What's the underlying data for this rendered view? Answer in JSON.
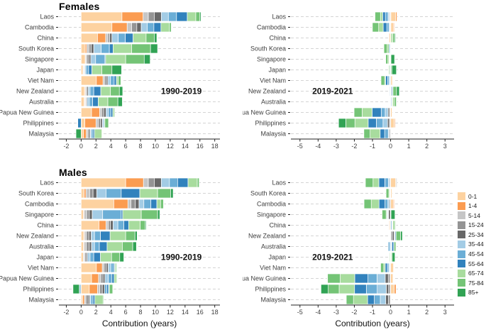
{
  "figure": {
    "panel_titles": [
      "Females",
      "Males"
    ],
    "xlabel": "Contribution (years)",
    "legend": [
      {
        "label": "0-1",
        "color": "#FDD2A0"
      },
      {
        "label": "1-4",
        "color": "#FB9C51"
      },
      {
        "label": "5-14",
        "color": "#C6C6C6"
      },
      {
        "label": "15-24",
        "color": "#949494"
      },
      {
        "label": "25-34",
        "color": "#686868"
      },
      {
        "label": "35-44",
        "color": "#A3CCE5"
      },
      {
        "label": "45-54",
        "color": "#6BAED6"
      },
      {
        "label": "55-64",
        "color": "#3182BD"
      },
      {
        "label": "65-74",
        "color": "#A8DC9E"
      },
      {
        "label": "75-84",
        "color": "#74C476"
      },
      {
        "label": "85+",
        "color": "#31A354"
      }
    ],
    "grid_color": "#D4D4D4",
    "axis_color": "#222222",
    "text_color": "#404040"
  },
  "chart_data": [
    {
      "type": "bar",
      "stacked": true,
      "orientation": "horizontal",
      "sex": "Females",
      "period": "1990-2019",
      "xlabel": null,
      "xlim": [
        -3.0,
        18.7
      ],
      "xticks": [
        -2,
        0,
        2,
        4,
        6,
        8,
        10,
        12,
        14,
        16,
        18
      ],
      "period_label": {
        "text": "1990-2019",
        "x": 13.5,
        "row": 7
      },
      "age_groups": [
        "0-1",
        "1-4",
        "5-14",
        "15-24",
        "25-34",
        "35-44",
        "45-54",
        "55-64",
        "65-74",
        "75-84",
        "85+"
      ],
      "categories": [
        "Laos",
        "Cambodia",
        "China",
        "South Korea",
        "Singapore",
        "Japan",
        "Viet Nam",
        "New Zealand",
        "Australia",
        "Papua New Guinea",
        "Philippines",
        "Malaysia"
      ],
      "series": [
        {
          "name": "Laos",
          "values": [
            5.5,
            2.85,
            0.7,
            0.8,
            0.95,
            0.95,
            1.1,
            1.45,
            1.15,
            0.55,
            0.15
          ]
        },
        {
          "name": "Cambodia",
          "values": [
            4.15,
            2.05,
            0.6,
            0.7,
            0.6,
            0.8,
            0.9,
            0.95,
            1.15,
            0.25,
            0.05
          ]
        },
        {
          "name": "China",
          "values": [
            2.2,
            1.1,
            0.3,
            0.25,
            0.3,
            0.85,
            0.95,
            1.05,
            1.75,
            1.1,
            0.35
          ]
        },
        {
          "name": "South Korea",
          "values": [
            0.55,
            0.2,
            0.3,
            0.3,
            0.35,
            1.0,
            1.1,
            0.5,
            2.5,
            2.55,
            0.95
          ]
        },
        {
          "name": "Singapore",
          "values": [
            0.55,
            0.05,
            0.2,
            0.25,
            0.25,
            0.65,
            1.25,
            0.1,
            2.7,
            2.5,
            0.8
          ]
        },
        {
          "name": "Japan",
          "values": [
            0.25,
            0.05,
            0.05,
            0.1,
            0.05,
            0.15,
            0.35,
            0.45,
            1.35,
            1.35,
            1.3
          ]
        },
        {
          "name": "Viet Nam",
          "values": [
            2.05,
            0.9,
            0.2,
            0.25,
            0.2,
            0.35,
            0.5,
            0.3,
            0.25,
            0.35,
            0.05
          ]
        },
        {
          "name": "New Zealand",
          "values": [
            0.45,
            0.1,
            0.1,
            0.15,
            0.15,
            0.25,
            0.5,
            0.95,
            1.3,
            1.2,
            0.45
          ]
        },
        {
          "name": "Australia",
          "values": [
            0.4,
            0.1,
            0.1,
            0.1,
            0.1,
            0.3,
            0.45,
            0.75,
            1.3,
            1.35,
            0.6
          ]
        },
        {
          "name": "Papua New Guinea",
          "values": [
            1.4,
            1.1,
            0.25,
            0.3,
            0.3,
            0.3,
            0.35,
            0.25,
            0.2,
            0.1,
            0.0
          ]
        },
        {
          "name": "Philippines",
          "values": [
            0.5,
            1.5,
            0.3,
            0.3,
            0.25,
            0.1,
            0.15,
            -0.45,
            0.1,
            0.5,
            0.05
          ]
        },
        {
          "name": "Malaysia",
          "values": [
            0.3,
            0.4,
            0.2,
            0.2,
            0.15,
            0.1,
            0.25,
            0.2,
            1.0,
            0.05,
            -0.7
          ]
        }
      ]
    },
    {
      "type": "bar",
      "stacked": true,
      "orientation": "horizontal",
      "sex": "Females",
      "period": "2019-2021",
      "xlabel": null,
      "xlim": [
        -5.5,
        3.5
      ],
      "xticks": [
        -5,
        -4,
        -3,
        -2,
        -1,
        0,
        1,
        2,
        3
      ],
      "period_label": {
        "text": "2019-2021",
        "x": -3.2,
        "row": 7
      },
      "age_groups": [
        "0-1",
        "1-4",
        "5-14",
        "15-24",
        "25-34",
        "35-44",
        "45-54",
        "55-64",
        "65-74",
        "75-84",
        "85+"
      ],
      "categories": [
        "Laos",
        "Cambodia",
        "China",
        "South Korea",
        "Singapore",
        "Japan",
        "Viet Nam",
        "New Zealand",
        "Australia",
        "Papua New Guinea",
        "Philippines",
        "Malaysia"
      ],
      "series": [
        {
          "name": "Laos",
          "values": [
            0.28,
            0.07,
            -0.01,
            -0.03,
            -0.04,
            -0.06,
            -0.15,
            -0.15,
            -0.12,
            -0.3,
            0.0
          ]
        },
        {
          "name": "Cambodia",
          "values": [
            0.15,
            0.05,
            0.0,
            -0.01,
            -0.03,
            -0.05,
            -0.12,
            -0.2,
            -0.25,
            -0.35,
            -0.02
          ]
        },
        {
          "name": "China",
          "values": [
            -0.07,
            -0.03,
            0.0,
            0.0,
            0.0,
            0.0,
            0.0,
            0.02,
            0.1,
            0.1,
            0.05
          ]
        },
        {
          "name": "South Korea",
          "values": [
            0.03,
            0.0,
            0.0,
            0.0,
            0.0,
            -0.01,
            -0.03,
            -0.05,
            -0.1,
            -0.18,
            0.0
          ]
        },
        {
          "name": "Singapore",
          "values": [
            0.02,
            0.0,
            0.0,
            -0.01,
            -0.03,
            -0.01,
            -0.02,
            -0.02,
            -0.06,
            -0.12,
            0.2
          ]
        },
        {
          "name": "Japan",
          "values": [
            0.02,
            0.0,
            0.0,
            0.0,
            0.0,
            0.0,
            -0.02,
            -0.03,
            -0.05,
            0.05,
            0.25
          ]
        },
        {
          "name": "Viet Nam",
          "values": [
            0.1,
            0.02,
            0.0,
            -0.01,
            -0.02,
            -0.05,
            -0.08,
            -0.12,
            -0.05,
            -0.2,
            0.0
          ]
        },
        {
          "name": "New Zealand",
          "values": [
            0.02,
            0.0,
            0.0,
            0.01,
            0.03,
            -0.02,
            -0.03,
            0.05,
            0.02,
            0.2,
            0.15
          ]
        },
        {
          "name": "Australia",
          "values": [
            0.02,
            0.0,
            0.0,
            0.0,
            -0.02,
            0.05,
            0.02,
            0.02,
            0.1,
            0.1,
            0.03
          ]
        },
        {
          "name": "Papua New Guinea",
          "values": [
            0.08,
            0.02,
            -0.02,
            -0.04,
            -0.08,
            -0.16,
            -0.22,
            -0.5,
            -0.55,
            -0.45,
            -0.02
          ]
        },
        {
          "name": "Philippines",
          "values": [
            0.2,
            0.05,
            -0.02,
            -0.05,
            -0.1,
            -0.25,
            -0.37,
            -0.45,
            -0.73,
            -0.5,
            -0.4
          ]
        },
        {
          "name": "Malaysia",
          "values": [
            0.03,
            0.0,
            -0.01,
            -0.02,
            -0.05,
            -0.05,
            -0.2,
            -0.25,
            -0.55,
            -0.35,
            -0.02
          ]
        }
      ]
    },
    {
      "type": "bar",
      "stacked": true,
      "orientation": "horizontal",
      "sex": "Males",
      "period": "1990-2019",
      "xlabel": "Contribution (years)",
      "xlim": [
        -3.0,
        18.7
      ],
      "xticks": [
        -2,
        0,
        2,
        4,
        6,
        8,
        10,
        12,
        14,
        16,
        18
      ],
      "period_label": {
        "text": "1990-2019",
        "x": 13.5,
        "row": 7
      },
      "age_groups": [
        "0-1",
        "1-4",
        "5-14",
        "15-24",
        "25-34",
        "35-44",
        "45-54",
        "55-64",
        "65-74",
        "75-84",
        "85+"
      ],
      "categories": [
        "Laos",
        "South Korea",
        "Cambodia",
        "Singapore",
        "China",
        "New Zealand",
        "Australia",
        "Japan",
        "Viet Nam",
        "Papua New Guinea",
        "Philippines",
        "Malaysia"
      ],
      "series": [
        {
          "name": "Laos",
          "values": [
            6.0,
            2.4,
            0.65,
            0.8,
            0.95,
            1.1,
            1.1,
            1.4,
            1.25,
            0.25,
            0.0
          ]
        },
        {
          "name": "South Korea",
          "values": [
            0.4,
            0.25,
            0.5,
            0.45,
            0.5,
            1.25,
            2.05,
            2.5,
            2.4,
            1.75,
            0.35
          ]
        },
        {
          "name": "Cambodia",
          "values": [
            4.4,
            1.9,
            0.4,
            0.6,
            0.5,
            0.65,
            0.95,
            0.8,
            0.5,
            0.4,
            0.05
          ]
        },
        {
          "name": "Singapore",
          "values": [
            0.3,
            0.1,
            0.35,
            0.35,
            0.4,
            1.4,
            2.5,
            0.2,
            2.5,
            2.2,
            0.3
          ]
        },
        {
          "name": "China",
          "values": [
            2.4,
            0.95,
            0.3,
            0.3,
            0.35,
            0.65,
            0.8,
            0.65,
            1.55,
            0.65,
            0.15
          ]
        },
        {
          "name": "New Zealand",
          "values": [
            0.35,
            0.1,
            0.25,
            0.35,
            0.3,
            0.45,
            0.8,
            1.3,
            2.1,
            1.25,
            0.3
          ]
        },
        {
          "name": "Australia",
          "values": [
            0.3,
            0.1,
            0.3,
            0.4,
            0.3,
            0.4,
            0.65,
            1.05,
            2.05,
            1.4,
            0.5
          ]
        },
        {
          "name": "Japan",
          "values": [
            0.3,
            0.05,
            0.15,
            0.2,
            0.15,
            0.35,
            0.5,
            0.9,
            1.5,
            1.1,
            0.55
          ]
        },
        {
          "name": "Viet Nam",
          "values": [
            2.05,
            0.8,
            0.25,
            0.3,
            0.25,
            0.35,
            0.35,
            0.15,
            0.1,
            0.15,
            0.0
          ]
        },
        {
          "name": "Papua New Guinea",
          "values": [
            1.4,
            0.95,
            0.3,
            0.3,
            0.25,
            0.45,
            0.5,
            0.3,
            0.3,
            0.1,
            0.0
          ]
        },
        {
          "name": "Philippines",
          "values": [
            1.1,
            1.1,
            0.3,
            0.35,
            0.3,
            -0.25,
            0.3,
            0.25,
            0.1,
            0.45,
            -0.85
          ]
        },
        {
          "name": "Malaysia",
          "values": [
            0.2,
            0.25,
            0.2,
            0.3,
            0.2,
            0.15,
            0.3,
            0.25,
            1.1,
            0.1,
            -0.05
          ]
        }
      ]
    },
    {
      "type": "bar",
      "stacked": true,
      "orientation": "horizontal",
      "sex": "Males",
      "period": "2019-2021",
      "xlabel": "Contribution (years)",
      "xlim": [
        -5.5,
        3.5
      ],
      "xticks": [
        -5,
        -4,
        -3,
        -2,
        -1,
        0,
        1,
        2,
        3
      ],
      "period_label": {
        "text": "2019-2021",
        "x": -3.2,
        "row": 7
      },
      "age_groups": [
        "0-1",
        "1-4",
        "5-14",
        "15-24",
        "25-34",
        "35-44",
        "45-54",
        "55-64",
        "65-74",
        "75-84",
        "85+"
      ],
      "categories": [
        "Laos",
        "South Korea",
        "Cambodia",
        "Singapore",
        "China",
        "New Zealand",
        "Australia",
        "Japan",
        "Viet Nam",
        "Papua New Guinea",
        "Philippines",
        "Malaysia"
      ],
      "series": [
        {
          "name": "Laos",
          "values": [
            0.28,
            0.02,
            0.05,
            -0.02,
            -0.04,
            -0.06,
            -0.2,
            -0.33,
            -0.32,
            -0.42,
            0.0
          ]
        },
        {
          "name": "South Korea",
          "values": [
            0.08,
            0.0,
            0.0,
            0.0,
            0.0,
            -0.01,
            -0.02,
            -0.02,
            -0.05,
            -0.15,
            0.02
          ]
        },
        {
          "name": "Cambodia",
          "values": [
            0.15,
            0.05,
            0.0,
            -0.02,
            -0.05,
            -0.08,
            -0.16,
            -0.33,
            -0.43,
            -0.4,
            -0.02
          ]
        },
        {
          "name": "Singapore",
          "values": [
            0.02,
            0.0,
            0.0,
            -0.02,
            -0.1,
            -0.02,
            -0.03,
            -0.03,
            -0.05,
            -0.22,
            0.22
          ]
        },
        {
          "name": "China",
          "values": [
            -0.05,
            -0.03,
            0.0,
            0.0,
            0.0,
            0.08,
            0.02,
            0.02,
            0.1,
            0.05,
            0.02
          ]
        },
        {
          "name": "New Zealand",
          "values": [
            0.02,
            0.0,
            0.0,
            0.08,
            0.1,
            0.02,
            0.03,
            0.05,
            -0.02,
            0.25,
            0.1
          ]
        },
        {
          "name": "Australia",
          "values": [
            0.02,
            0.0,
            0.0,
            0.0,
            0.02,
            -0.15,
            0.03,
            0.1,
            0.02,
            0.1,
            0.02
          ]
        },
        {
          "name": "Japan",
          "values": [
            0.02,
            0.0,
            0.0,
            0.0,
            0.0,
            0.0,
            -0.02,
            0.02,
            -0.04,
            0.05,
            0.15
          ]
        },
        {
          "name": "Viet Nam",
          "values": [
            0.16,
            0.02,
            0.0,
            -0.03,
            -0.02,
            -0.05,
            -0.08,
            -0.12,
            -0.08,
            -0.17,
            0.0
          ]
        },
        {
          "name": "Papua New Guinea",
          "values": [
            0.13,
            0.02,
            -0.03,
            -0.1,
            -0.17,
            -0.45,
            -0.5,
            -0.73,
            -0.8,
            -0.7,
            -0.02
          ]
        },
        {
          "name": "Philippines",
          "values": [
            0.2,
            0.1,
            -0.02,
            -0.09,
            -0.13,
            -0.5,
            -0.6,
            -0.65,
            -0.85,
            -0.6,
            -0.4
          ]
        },
        {
          "name": "Malaysia",
          "values": [
            0.03,
            0.01,
            -0.02,
            -0.1,
            -0.15,
            -0.3,
            -0.33,
            -0.37,
            -0.78,
            -0.4,
            -0.02
          ]
        }
      ]
    }
  ]
}
